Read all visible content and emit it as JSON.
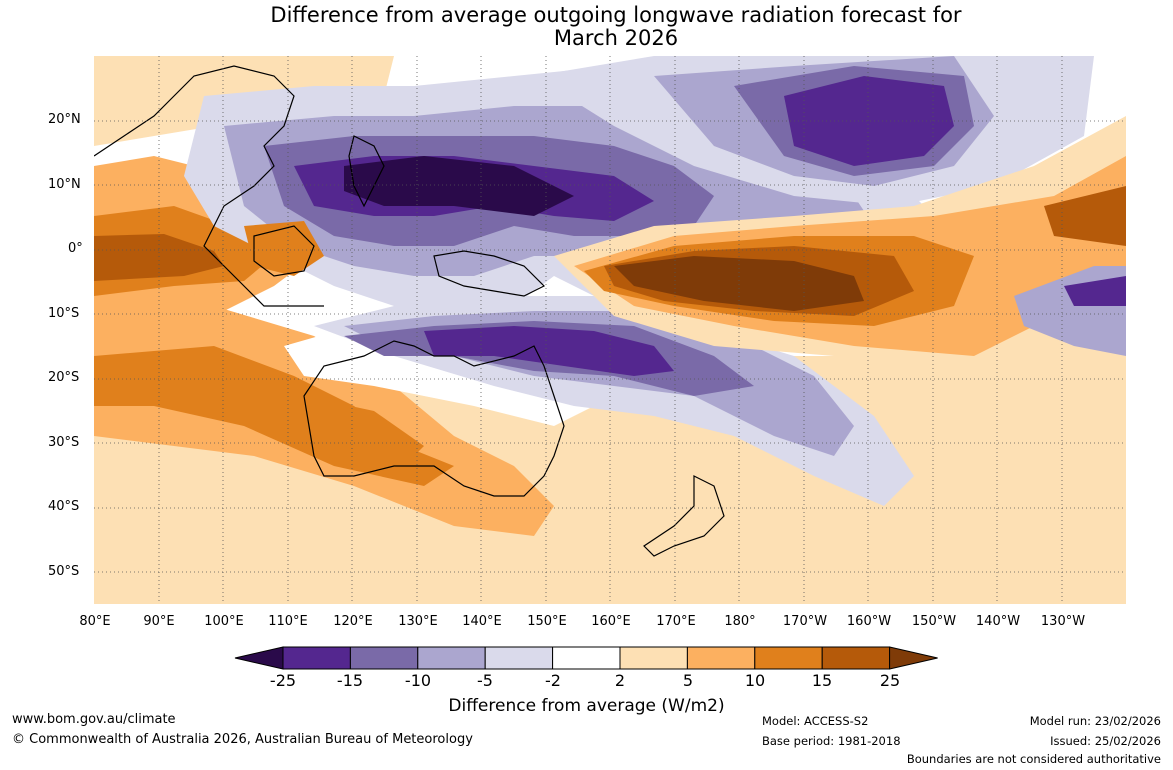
{
  "title": {
    "line1": "Difference from average outgoing longwave radiation forecast for",
    "line2": "March 2026"
  },
  "map": {
    "lat_ticks": [
      "20°N",
      "10°N",
      "0°",
      "10°S",
      "20°S",
      "30°S",
      "40°S",
      "50°S"
    ],
    "lon_ticks": [
      "80°E",
      "90°E",
      "100°E",
      "110°E",
      "120°E",
      "130°E",
      "140°E",
      "150°E",
      "160°E",
      "170°E",
      "180°",
      "170°W",
      "160°W",
      "150°W",
      "140°W",
      "130°W"
    ]
  },
  "colorbar": {
    "labels": [
      "-25",
      "-15",
      "-10",
      "-5",
      "-2",
      "2",
      "5",
      "10",
      "15",
      "25"
    ],
    "colors": [
      "#2a0a4a",
      "#54278f",
      "#7a6aa8",
      "#aba6cf",
      "#dadaeb",
      "#ffffff",
      "#fde0b4",
      "#fcb060",
      "#e0801c",
      "#b55a0a",
      "#7f3b08"
    ],
    "title": "Difference from average (W/m2)"
  },
  "footer": {
    "website": "www.bom.gov.au/climate",
    "copyright": "© Commonwealth of Australia 2026, Australian Bureau of Meteorology",
    "model": "Model: ACCESS-S2",
    "base_period": "Base period: 1981-2018",
    "model_run": "Model run: 23/02/2026",
    "issued": "Issued: 25/02/2026",
    "disclaimer": "Boundaries are not considered authoritative"
  }
}
